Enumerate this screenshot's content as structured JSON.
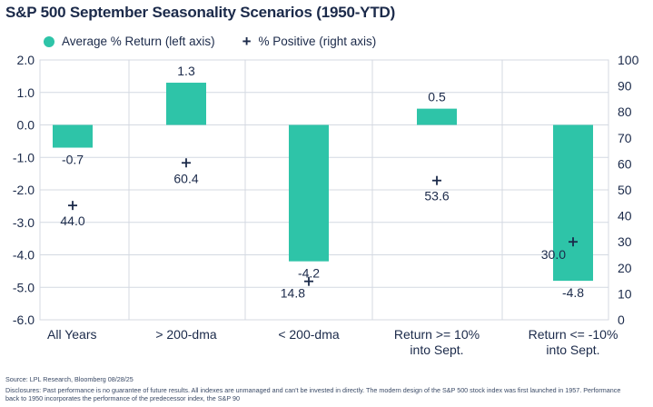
{
  "chart_data": {
    "type": "bar",
    "title": "S&P 500 September Seasonality Scenarios (1950-YTD)",
    "categories": [
      [
        "All Years"
      ],
      [
        "> 200-dma"
      ],
      [
        "< 200-dma"
      ],
      [
        "Return >= 10%",
        "into Sept."
      ],
      [
        "Return <= -10%",
        "into Sept."
      ]
    ],
    "series": [
      {
        "name": "Average % Return (left axis)",
        "type": "bar",
        "axis": "left",
        "color": "#2ec4a8",
        "values": [
          -0.7,
          1.3,
          -4.2,
          0.5,
          -4.8
        ],
        "labels": [
          "-0.7",
          "1.3",
          "-4.2",
          "0.5",
          "-4.8"
        ]
      },
      {
        "name": "% Positive (right axis)",
        "type": "scatter",
        "marker": "+",
        "axis": "right",
        "color": "#1b2a4a",
        "values": [
          44.0,
          60.4,
          14.8,
          53.6,
          30.0
        ],
        "labels": [
          "44.0",
          "60.4",
          "14.8",
          "53.6",
          "30.0"
        ]
      }
    ],
    "y_left": {
      "min": -6,
      "max": 2,
      "ticks": [
        2,
        1,
        0,
        -1,
        -2,
        -3,
        -4,
        -5,
        -6
      ],
      "tick_labels": [
        "2.0",
        "1.0",
        "0.0",
        "-1.0",
        "-2.0",
        "-3.0",
        "-4.0",
        "-5.0",
        "-6.0"
      ]
    },
    "y_right": {
      "min": 0,
      "max": 100,
      "ticks": [
        100,
        90,
        80,
        70,
        60,
        50,
        40,
        30,
        20,
        10,
        0
      ],
      "tick_labels": [
        "100",
        "90",
        "80",
        "70",
        "60",
        "50",
        "40",
        "30",
        "20",
        "10",
        "0"
      ]
    },
    "grid": true,
    "legend_position": "top-left"
  },
  "legend": {
    "bar_label": "Average % Return (left axis)",
    "marker_label": "% Positive (right axis)",
    "marker_symbol": "+"
  },
  "footer": {
    "source": "Source: LPL Research, Bloomberg 08/28/25",
    "disclosure_line1": "Disclosures: Past performance is no guarantee of future results. All indexes are unmanaged and can't be invested in directly. The modern design of the S&P 500 stock index was first launched in 1957. Performance",
    "disclosure_line2": "back to 1950 incorporates the performance of the predecessor index, the S&P 90"
  },
  "colors": {
    "bar": "#2ec4a8",
    "marker": "#1b2a4a",
    "text": "#1b2a4a",
    "grid": "#d4d9e2"
  }
}
